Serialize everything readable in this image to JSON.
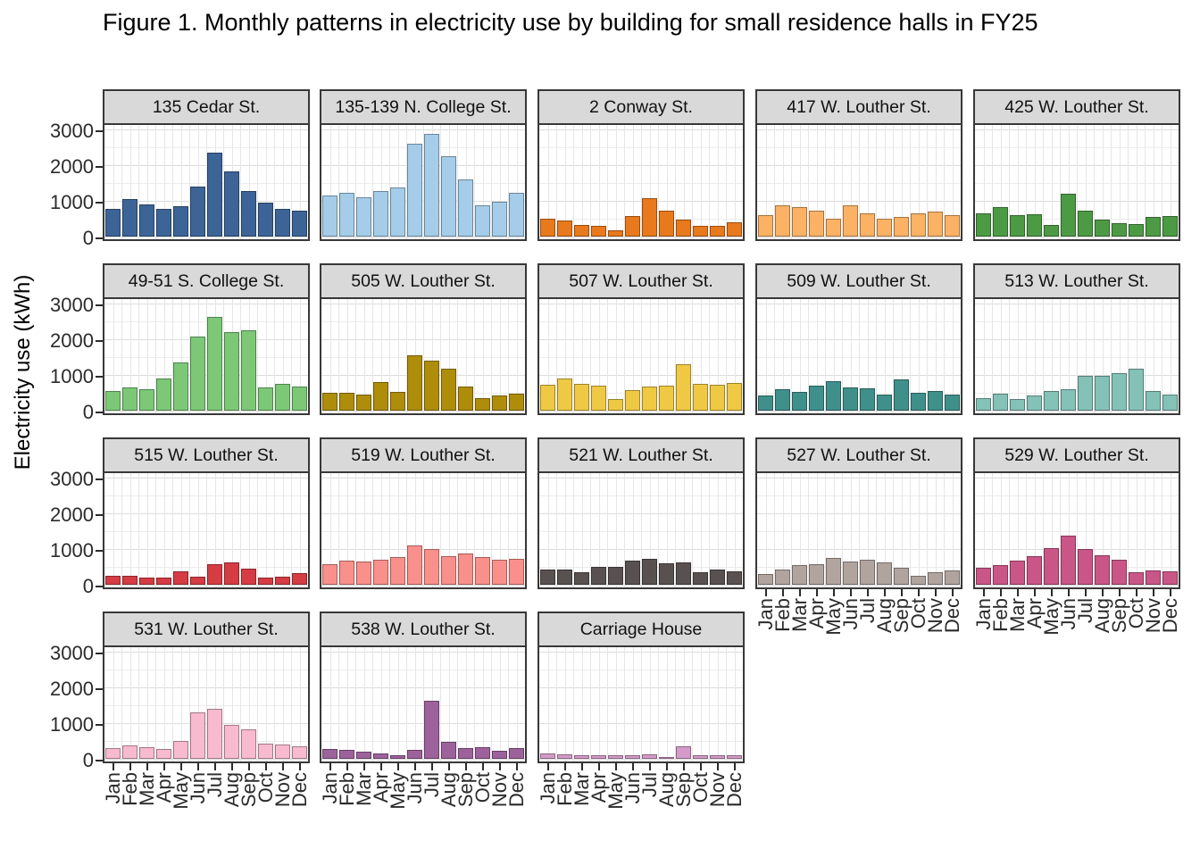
{
  "title": "Figure 1. Monthly patterns in electricity use by building for small residence halls in FY25",
  "y_axis": {
    "title": "Electricity use (kWh)",
    "tick_labels": [
      "3000",
      "2000",
      "1000",
      "0"
    ]
  },
  "x_axis": {
    "tick_labels": [
      "Jan",
      "Feb",
      "Mar",
      "Apr",
      "May",
      "Jun",
      "Jul",
      "Aug",
      "Sep",
      "Oct",
      "Nov",
      "Dec"
    ]
  },
  "chart_data": {
    "type": "bar",
    "title": "Figure 1. Monthly patterns in electricity use by building for small residence halls in FY25",
    "xlabel": "",
    "ylabel": "Electricity use (kWh)",
    "categories": [
      "Jan",
      "Feb",
      "Mar",
      "Apr",
      "May",
      "Jun",
      "Jul",
      "Aug",
      "Sep",
      "Oct",
      "Nov",
      "Dec"
    ],
    "ylim": [
      0,
      3000
    ],
    "y_major_ticks": [
      0,
      1000,
      2000,
      3000
    ],
    "y_minor_ticks": [
      500,
      1500,
      2500
    ],
    "grid": "on",
    "legend": "none",
    "facet_layout": {
      "ncol": 5,
      "nrow": 4
    },
    "strip_background": "#D9D9D9",
    "series": [
      {
        "name": "135 Cedar St.",
        "color": "#3C6497",
        "values": [
          780,
          1050,
          900,
          780,
          850,
          1400,
          2350,
          1830,
          1280,
          950,
          780,
          730
        ]
      },
      {
        "name": "135-139 N. College St.",
        "color": "#A5CDE9",
        "values": [
          1150,
          1230,
          1100,
          1280,
          1380,
          2600,
          2880,
          2260,
          1600,
          880,
          980,
          1230
        ]
      },
      {
        "name": "2 Conway St.",
        "color": "#E8791D",
        "values": [
          510,
          450,
          320,
          300,
          175,
          575,
          1070,
          735,
          480,
          290,
          300,
          400
        ]
      },
      {
        "name": "417 W. Louther St.",
        "color": "#FBB264",
        "values": [
          610,
          880,
          830,
          720,
          510,
          880,
          655,
          510,
          560,
          640,
          690,
          610
        ]
      },
      {
        "name": "425 W. Louther St.",
        "color": "#4D9A45",
        "values": [
          655,
          815,
          610,
          625,
          335,
          1200,
          720,
          465,
          385,
          350,
          560,
          575
        ]
      },
      {
        "name": "49-51 S. College St.",
        "color": "#7CC877",
        "values": [
          560,
          640,
          605,
          900,
          1345,
          2080,
          2620,
          2200,
          2260,
          655,
          755,
          670
        ]
      },
      {
        "name": "505 W. Louther St.",
        "color": "#AE8D0B",
        "values": [
          500,
          490,
          450,
          790,
          530,
          1550,
          1410,
          1170,
          680,
          360,
          420,
          480
        ]
      },
      {
        "name": "507 W. Louther St.",
        "color": "#EFC943",
        "values": [
          720,
          910,
          750,
          705,
          320,
          575,
          670,
          690,
          1295,
          750,
          720,
          770
        ]
      },
      {
        "name": "509 W. Louther St.",
        "color": "#3F908A",
        "values": [
          415,
          610,
          530,
          690,
          830,
          655,
          625,
          450,
          880,
          510,
          560,
          450
        ]
      },
      {
        "name": "513 W. Louther St.",
        "color": "#84C1B7",
        "values": [
          350,
          465,
          335,
          415,
          545,
          590,
          975,
          975,
          1040,
          1170,
          560,
          460
        ]
      },
      {
        "name": "515 W. Louther St.",
        "color": "#D53C43",
        "values": [
          240,
          260,
          195,
          210,
          370,
          225,
          580,
          630,
          450,
          210,
          225,
          320
        ]
      },
      {
        "name": "519 W. Louther St.",
        "color": "#FA908B",
        "values": [
          580,
          670,
          660,
          700,
          775,
          1090,
          1000,
          800,
          880,
          775,
          690,
          725
        ]
      },
      {
        "name": "521 W. Louther St.",
        "color": "#585150",
        "values": [
          430,
          420,
          340,
          510,
          500,
          675,
          725,
          610,
          635,
          355,
          420,
          385
        ]
      },
      {
        "name": "527 W. Louther St.",
        "color": "#B1A49E",
        "values": [
          300,
          435,
          545,
          580,
          740,
          645,
          710,
          630,
          465,
          255,
          340,
          400
        ]
      },
      {
        "name": "529 W. Louther St.",
        "color": "#CA5688",
        "values": [
          480,
          560,
          675,
          790,
          1015,
          1365,
          1000,
          820,
          710,
          340,
          400,
          370
        ]
      },
      {
        "name": "531 W. Louther St.",
        "color": "#F8BACF",
        "values": [
          300,
          370,
          320,
          280,
          490,
          1300,
          1400,
          960,
          820,
          420,
          400,
          340
        ]
      },
      {
        "name": "538 W. Louther St.",
        "color": "#9D629B",
        "values": [
          270,
          255,
          190,
          160,
          110,
          240,
          1615,
          465,
          290,
          320,
          225,
          290
        ]
      },
      {
        "name": "Carriage House",
        "color": "#D49BC8",
        "values": [
          145,
          130,
          95,
          110,
          110,
          95,
          130,
          50,
          355,
          110,
          110,
          110
        ]
      }
    ]
  }
}
